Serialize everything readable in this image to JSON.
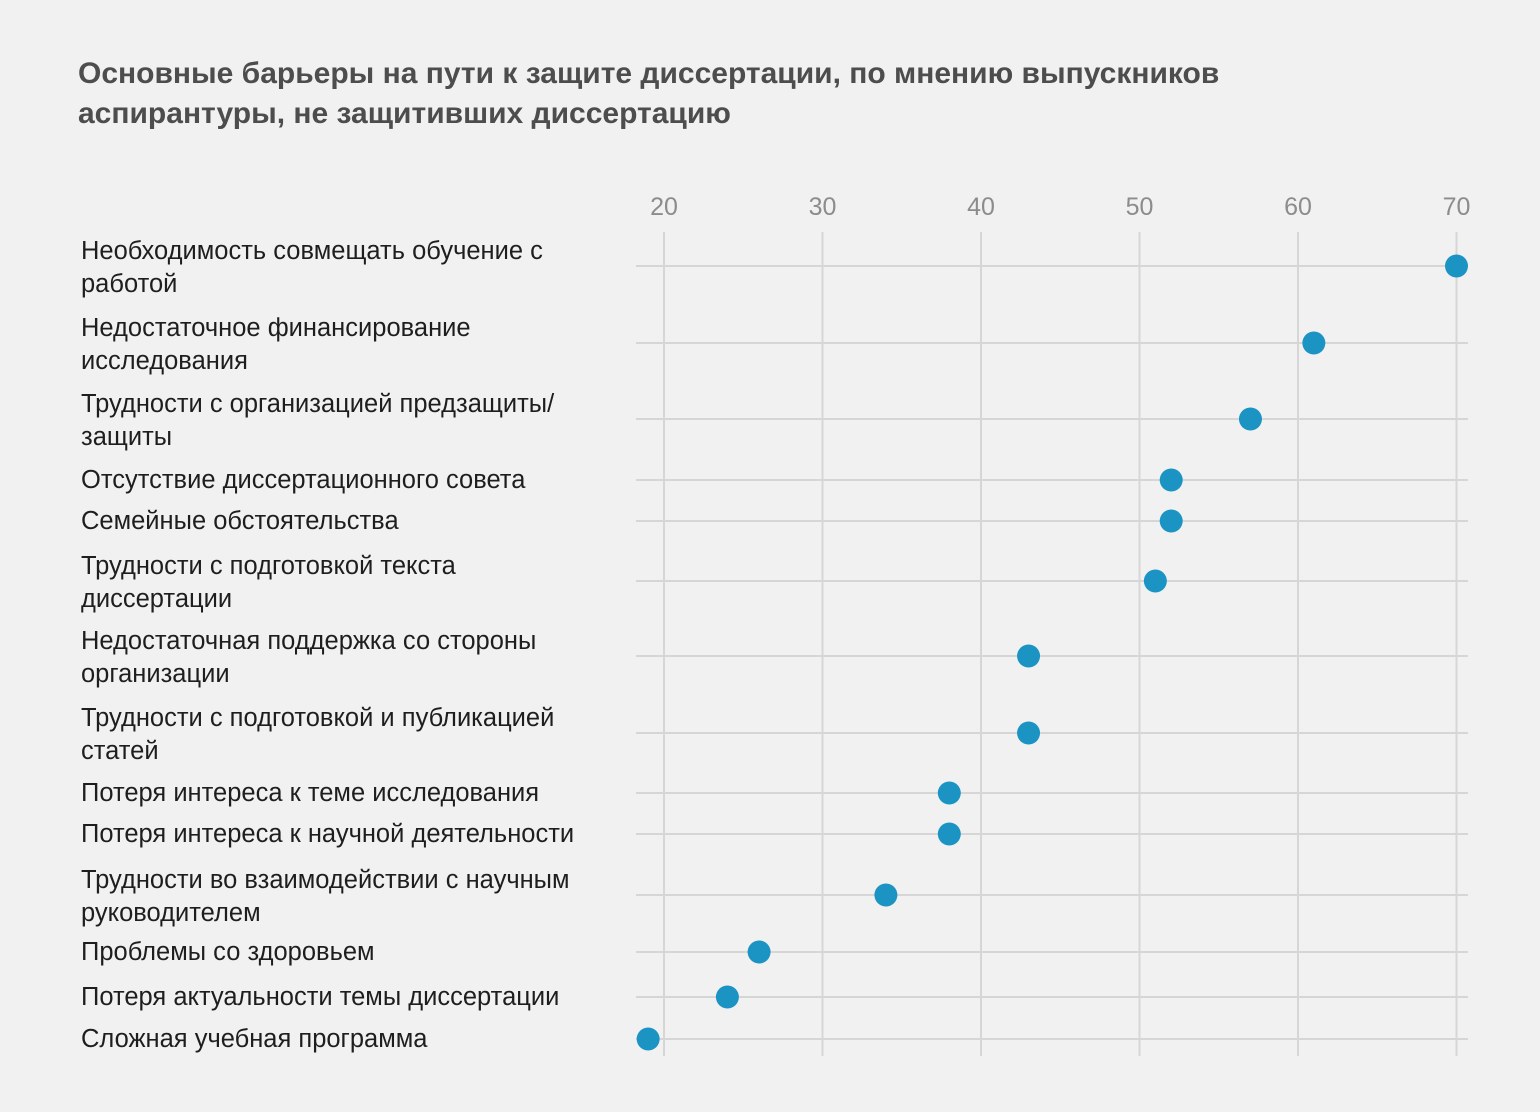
{
  "title_lines": [
    "Основные барьеры на пути к защите диссертации, по мнению выпускников",
    "аспирантуры, не защитивших диссертацию"
  ],
  "chart_data": {
    "type": "scatter",
    "orientation": "horizontal-dot-plot",
    "title": "Основные барьеры на пути к защите диссертации, по мнению выпускников аспирантуры, не защитивших диссертацию",
    "x_ticks": [
      20,
      30,
      40,
      50,
      60,
      70
    ],
    "xlim": [
      18,
      71
    ],
    "x_axis_position": "top",
    "grid": true,
    "dot_color": "#1b94c4",
    "gridline_color": "#d6d6d6",
    "categories": [
      [
        "Необходимость совмещать обучение с",
        "работой"
      ],
      [
        "Недостаточное финансирование",
        "исследования"
      ],
      [
        "Трудности с организацией предзащиты/",
        "защиты"
      ],
      [
        "Отсутствие диссертационного совета"
      ],
      [
        "Семейные обстоятельства"
      ],
      [
        "Трудности с подготовкой текста",
        "диссертации"
      ],
      [
        "Недостаточная поддержка со стороны",
        "организации"
      ],
      [
        "Трудности с подготовкой и публикацией",
        "статей"
      ],
      [
        "Потеря интереса к теме исследования"
      ],
      [
        "Потеря интереса к научной деятельности"
      ],
      [
        "Трудности во взаимодействии с научным",
        "руководителем"
      ],
      [
        "Проблемы со здоровьем"
      ],
      [
        "Потеря актуальности темы диссертации"
      ],
      [
        "Сложная учебная программа"
      ]
    ],
    "values": [
      70,
      61,
      57,
      52,
      52,
      51,
      43,
      43,
      38,
      38,
      34,
      26,
      24,
      19
    ]
  }
}
